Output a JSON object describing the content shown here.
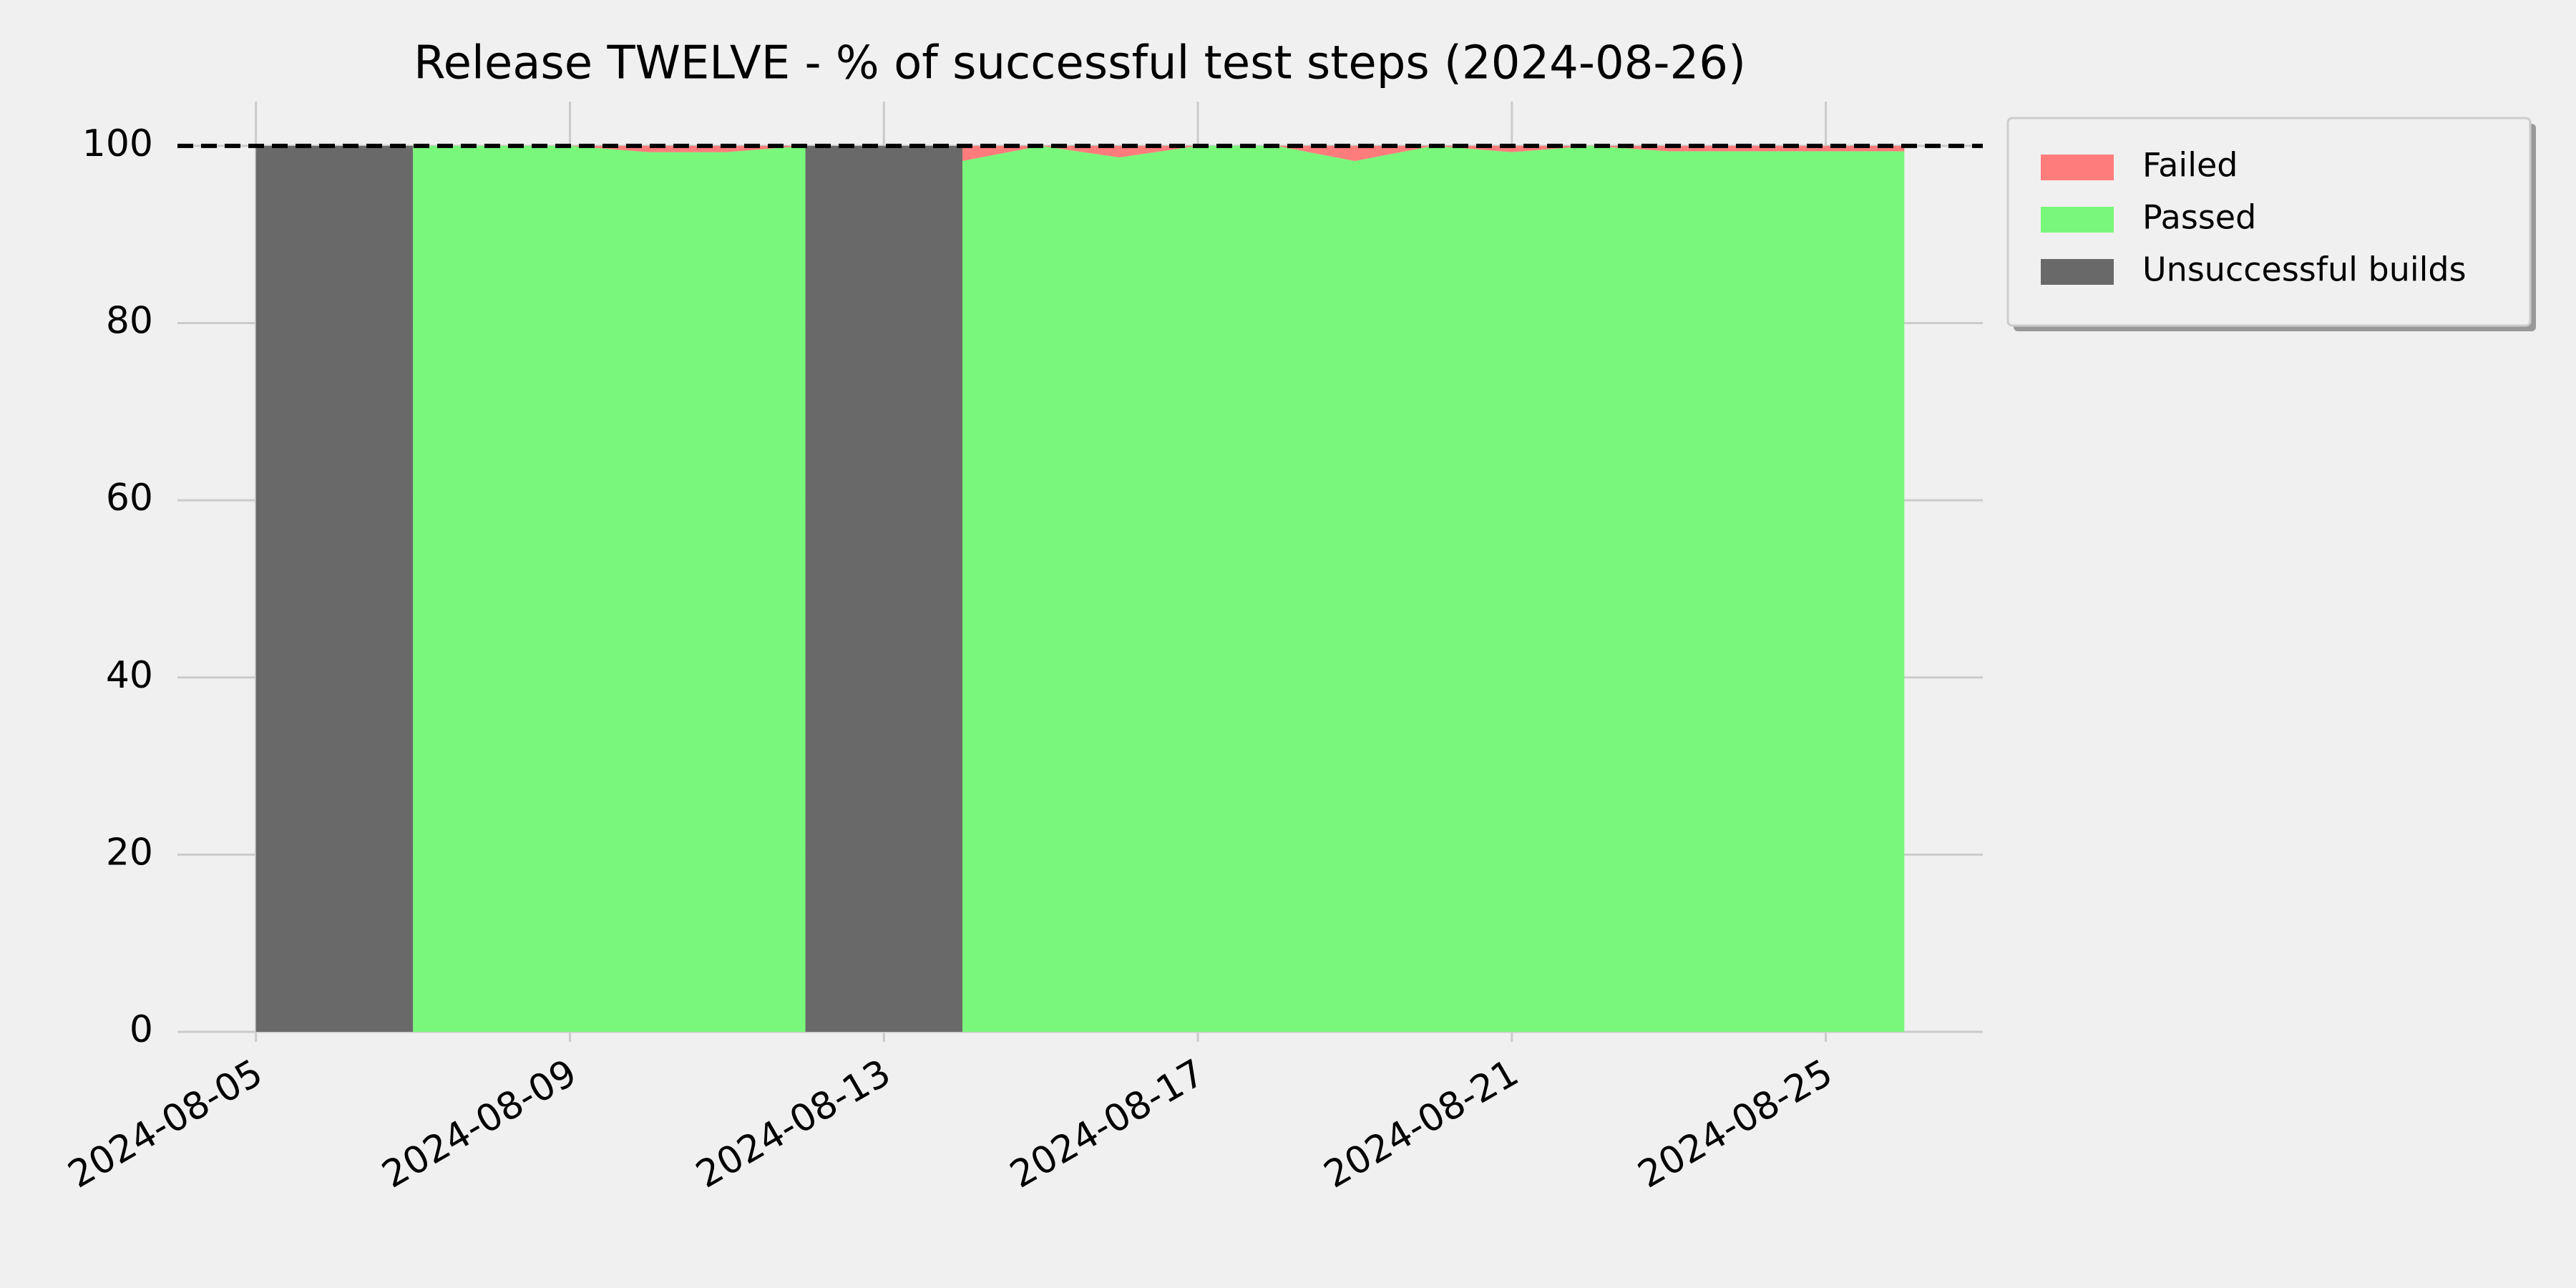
{
  "chart_data": {
    "type": "area",
    "title": "Release TWELVE - % of successful test steps (2024-08-26)",
    "x": [
      "2024-08-05",
      "2024-08-06",
      "2024-08-07",
      "2024-08-08",
      "2024-08-09",
      "2024-08-10",
      "2024-08-11",
      "2024-08-12",
      "2024-08-13",
      "2024-08-14",
      "2024-08-15",
      "2024-08-16",
      "2024-08-17",
      "2024-08-18",
      "2024-08-19",
      "2024-08-20",
      "2024-08-21",
      "2024-08-22",
      "2024-08-23",
      "2024-08-24",
      "2024-08-25",
      "2024-08-26"
    ],
    "series": [
      {
        "name": "Failed",
        "color": "#ff7c7c",
        "values": [
          null,
          null,
          0,
          0,
          0,
          0.7,
          0.7,
          0,
          null,
          1.7,
          0,
          1.3,
          0,
          0,
          1.7,
          0,
          0.7,
          0,
          0.6,
          0.6,
          0.6,
          0.6
        ]
      },
      {
        "name": "Passed",
        "color": "#79f77a",
        "values": [
          null,
          null,
          100,
          100,
          100,
          99.3,
          99.3,
          100,
          null,
          98.3,
          100,
          98.7,
          100,
          100,
          98.3,
          100,
          99.3,
          100,
          99.4,
          99.4,
          99.4,
          99.4
        ]
      },
      {
        "name": "Unsuccessful builds",
        "color": "#696969",
        "values": [
          100,
          100,
          100,
          null,
          null,
          null,
          null,
          100,
          100,
          100,
          null,
          null,
          null,
          null,
          null,
          null,
          null,
          null,
          null,
          null,
          null,
          null
        ]
      }
    ],
    "threshold": 100,
    "xlim": [
      "2024-08-04",
      "2024-08-27"
    ],
    "xticks": [
      "2024-08-05",
      "2024-08-09",
      "2024-08-13",
      "2024-08-17",
      "2024-08-21",
      "2024-08-25"
    ],
    "ylim": [
      0,
      105
    ],
    "yticks": [
      0,
      20,
      40,
      60,
      80,
      100
    ],
    "grid": true,
    "legend": "outside upper right"
  }
}
